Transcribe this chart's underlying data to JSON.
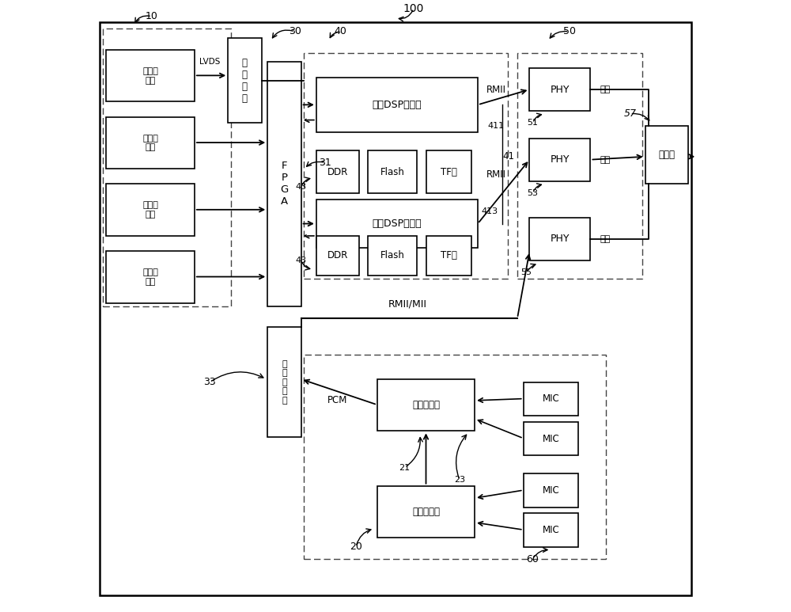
{
  "sensor_text": "图像传\n感器",
  "splicing_text": "拼\n接\n模\n块",
  "fpga_text": "F\nP\nG\nA",
  "storage_text": "第\n一\n存\n储\n器",
  "dsp1_text": "第一DSP处理器",
  "dsp2_text": "第二DSP处理器",
  "ddr_text": "DDR",
  "flash_text": "Flash",
  "tf_text": "TF卡",
  "phy_text": "PHY",
  "network_text": "网线",
  "avhead_text": "航空头",
  "main_codec_text": "主编解码器",
  "sub_codec_text": "从编解码器",
  "mic_text": "MIC",
  "lvds_text": "LVDS",
  "rmii_text": "RMII",
  "rmii_mii_text": "RMII/MII",
  "pcm_text": "PCM",
  "label_100": "100",
  "label_10": "10",
  "label_30": "30",
  "label_31": "31",
  "label_33": "33",
  "label_40": "40",
  "label_41": "41",
  "label_43a": "43",
  "label_43b": "43",
  "label_50": "50",
  "label_51": "51",
  "label_53": "53",
  "label_55": "55",
  "label_57": "57",
  "label_60": "60",
  "label_20": "20",
  "label_21": "21",
  "label_23": "23",
  "label_411": "411",
  "label_413": "413"
}
